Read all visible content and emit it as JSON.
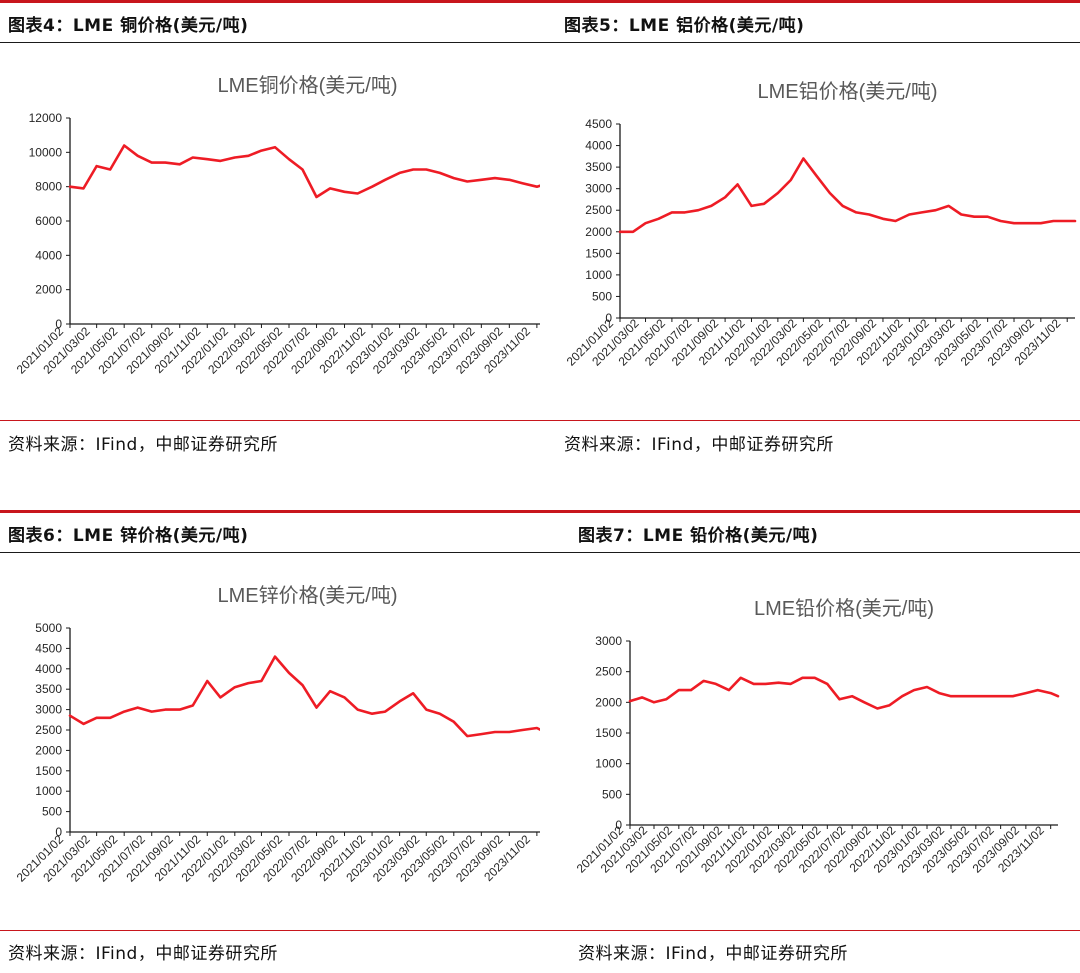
{
  "panels": [
    {
      "header": "图表4：LME 铜价格(美元/吨)",
      "source": "资料来源：IFind，中邮证券研究所",
      "chart_title": "LME铜价格(美元/吨)",
      "line_color": "#ee1c25"
    },
    {
      "header": "图表5：LME 铝价格(美元/吨)",
      "source": "资料来源：IFind，中邮证券研究所",
      "chart_title": "LME铝价格(美元/吨)",
      "line_color": "#ee1c25"
    },
    {
      "header": "图表6：LME 锌价格(美元/吨)",
      "source": "资料来源：IFind，中邮证券研究所",
      "chart_title": "LME锌价格(美元/吨)",
      "line_color": "#ee1c25"
    },
    {
      "header": "图表7：LME 铅价格(美元/吨)",
      "source": "资料来源：IFind，中邮证券研究所",
      "chart_title": "LME铅价格(美元/吨)",
      "line_color": "#ee1c25"
    }
  ],
  "chart_data": [
    {
      "type": "line",
      "title": "LME铜价格(美元/吨)",
      "ylim": [
        0,
        12000
      ],
      "yticks": [
        0,
        2000,
        4000,
        6000,
        8000,
        10000,
        12000
      ],
      "xticks": [
        "2021/01/02",
        "2021/03/02",
        "2021/05/02",
        "2021/07/02",
        "2021/09/02",
        "2021/11/02",
        "2022/01/02",
        "2022/03/02",
        "2022/05/02",
        "2022/07/02",
        "2022/09/02",
        "2022/11/02",
        "2023/01/02",
        "2023/03/02",
        "2023/05/02",
        "2023/07/02",
        "2023/09/02",
        "2023/11/02"
      ],
      "x": [
        "2021/01/02",
        "2021/02/01",
        "2021/03/02",
        "2021/04/01",
        "2021/05/02",
        "2021/06/01",
        "2021/07/02",
        "2021/08/01",
        "2021/09/02",
        "2021/10/01",
        "2021/11/02",
        "2021/12/01",
        "2022/01/02",
        "2022/02/01",
        "2022/03/02",
        "2022/04/01",
        "2022/05/02",
        "2022/06/01",
        "2022/07/02",
        "2022/08/01",
        "2022/09/02",
        "2022/10/01",
        "2022/11/02",
        "2022/12/01",
        "2023/01/02",
        "2023/02/01",
        "2023/03/02",
        "2023/04/01",
        "2023/05/02",
        "2023/06/01",
        "2023/07/02",
        "2023/08/01",
        "2023/09/02",
        "2023/10/01",
        "2023/11/02",
        "2023/11/20"
      ],
      "series": [
        {
          "values": [
            8000,
            7900,
            9200,
            9000,
            10400,
            9800,
            9400,
            9400,
            9300,
            9700,
            9600,
            9500,
            9700,
            9800,
            10100,
            10300,
            9600,
            9000,
            7400,
            7900,
            7700,
            7600,
            8000,
            8400,
            8800,
            9000,
            9000,
            8800,
            8500,
            8300,
            8400,
            8500,
            8400,
            8200,
            8000,
            8150
          ]
        }
      ]
    },
    {
      "type": "line",
      "title": "LME铝价格(美元/吨)",
      "ylim": [
        0,
        4500
      ],
      "yticks": [
        0,
        500,
        1000,
        1500,
        2000,
        2500,
        3000,
        3500,
        4000,
        4500
      ],
      "xticks": [
        "2021/01/02",
        "2021/03/02",
        "2021/05/02",
        "2021/07/02",
        "2021/09/02",
        "2021/11/02",
        "2022/01/02",
        "2022/03/02",
        "2022/05/02",
        "2022/07/02",
        "2022/09/02",
        "2022/11/02",
        "2023/01/02",
        "2023/03/02",
        "2023/05/02",
        "2023/07/02",
        "2023/09/02",
        "2023/11/02"
      ],
      "x": [
        "2021/01/02",
        "2021/02/01",
        "2021/03/02",
        "2021/04/01",
        "2021/05/02",
        "2021/06/01",
        "2021/07/02",
        "2021/08/01",
        "2021/09/02",
        "2021/10/01",
        "2021/11/02",
        "2021/12/01",
        "2022/01/02",
        "2022/02/01",
        "2022/03/02",
        "2022/04/01",
        "2022/05/02",
        "2022/06/01",
        "2022/07/02",
        "2022/08/01",
        "2022/09/02",
        "2022/10/01",
        "2022/11/02",
        "2022/12/01",
        "2023/01/02",
        "2023/02/01",
        "2023/03/02",
        "2023/04/01",
        "2023/05/02",
        "2023/06/01",
        "2023/07/02",
        "2023/08/01",
        "2023/09/02",
        "2023/10/01",
        "2023/11/02",
        "2023/11/20"
      ],
      "series": [
        {
          "values": [
            2000,
            2000,
            2200,
            2300,
            2450,
            2450,
            2500,
            2600,
            2800,
            3100,
            2600,
            2650,
            2900,
            3200,
            3700,
            3300,
            2900,
            2600,
            2450,
            2400,
            2300,
            2250,
            2400,
            2450,
            2500,
            2600,
            2400,
            2350,
            2350,
            2250,
            2200,
            2200,
            2200,
            2250,
            2250,
            2250
          ]
        }
      ]
    },
    {
      "type": "line",
      "title": "LME锌价格(美元/吨)",
      "ylim": [
        0,
        5000
      ],
      "yticks": [
        0,
        500,
        1000,
        1500,
        2000,
        2500,
        3000,
        3500,
        4000,
        4500,
        5000
      ],
      "xticks": [
        "2021/01/02",
        "2021/03/02",
        "2021/05/02",
        "2021/07/02",
        "2021/09/02",
        "2021/11/02",
        "2022/01/02",
        "2022/03/02",
        "2022/05/02",
        "2022/07/02",
        "2022/09/02",
        "2022/11/02",
        "2023/01/02",
        "2023/03/02",
        "2023/05/02",
        "2023/07/02",
        "2023/09/02",
        "2023/11/02"
      ],
      "x": [
        "2021/01/02",
        "2021/02/01",
        "2021/03/02",
        "2021/04/01",
        "2021/05/02",
        "2021/06/01",
        "2021/07/02",
        "2021/08/01",
        "2021/09/02",
        "2021/10/01",
        "2021/11/02",
        "2021/12/01",
        "2022/01/02",
        "2022/02/01",
        "2022/03/02",
        "2022/04/01",
        "2022/05/02",
        "2022/06/01",
        "2022/07/02",
        "2022/08/01",
        "2022/09/02",
        "2022/10/01",
        "2022/11/02",
        "2022/12/01",
        "2023/01/02",
        "2023/02/01",
        "2023/03/02",
        "2023/04/01",
        "2023/05/02",
        "2023/06/01",
        "2023/07/02",
        "2023/08/01",
        "2023/09/02",
        "2023/10/01",
        "2023/11/02",
        "2023/11/20"
      ],
      "series": [
        {
          "values": [
            2850,
            2650,
            2800,
            2800,
            2950,
            3050,
            2950,
            3000,
            3000,
            3100,
            3700,
            3300,
            3550,
            3650,
            3700,
            4300,
            3900,
            3600,
            3050,
            3450,
            3300,
            3000,
            2900,
            2950,
            3200,
            3400,
            3000,
            2900,
            2700,
            2350,
            2400,
            2450,
            2450,
            2500,
            2550,
            2450
          ]
        }
      ]
    },
    {
      "type": "line",
      "title": "LME铅价格(美元/吨)",
      "ylim": [
        0,
        3000
      ],
      "yticks": [
        0,
        500,
        1000,
        1500,
        2000,
        2500,
        3000
      ],
      "xticks": [
        "2021/01/02",
        "2021/03/02",
        "2021/05/02",
        "2021/07/02",
        "2021/09/02",
        "2021/11/02",
        "2022/01/02",
        "2022/03/02",
        "2022/05/02",
        "2022/07/02",
        "2022/09/02",
        "2022/11/02",
        "2023/01/02",
        "2023/03/02",
        "2023/05/02",
        "2023/07/02",
        "2023/09/02",
        "2023/11/02"
      ],
      "x": [
        "2021/01/02",
        "2021/02/01",
        "2021/03/02",
        "2021/04/01",
        "2021/05/02",
        "2021/06/01",
        "2021/07/02",
        "2021/08/01",
        "2021/09/02",
        "2021/10/01",
        "2021/11/02",
        "2021/12/01",
        "2022/01/02",
        "2022/02/01",
        "2022/03/02",
        "2022/04/01",
        "2022/05/02",
        "2022/06/01",
        "2022/07/02",
        "2022/08/01",
        "2022/09/02",
        "2022/10/01",
        "2022/11/02",
        "2022/12/01",
        "2023/01/02",
        "2023/02/01",
        "2023/03/02",
        "2023/04/01",
        "2023/05/02",
        "2023/06/01",
        "2023/07/02",
        "2023/08/01",
        "2023/09/02",
        "2023/10/01",
        "2023/11/02",
        "2023/11/20"
      ],
      "series": [
        {
          "values": [
            2020,
            2080,
            2000,
            2050,
            2200,
            2200,
            2350,
            2300,
            2200,
            2400,
            2300,
            2300,
            2320,
            2300,
            2400,
            2400,
            2300,
            2050,
            2100,
            2000,
            1900,
            1950,
            2100,
            2200,
            2250,
            2150,
            2100,
            2100,
            2100,
            2100,
            2100,
            2100,
            2150,
            2200,
            2150,
            2100
          ]
        }
      ]
    }
  ]
}
